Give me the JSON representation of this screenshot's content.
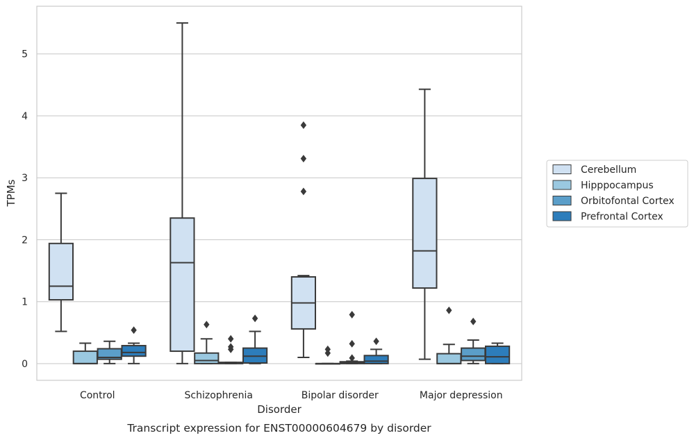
{
  "chart_data": {
    "type": "box",
    "caption": "Transcript expression for ENST00000604679 by disorder",
    "xlabel": "Disorder",
    "ylabel": "TPMs",
    "ylim": [
      -0.27,
      5.77
    ],
    "yticks": [
      0,
      1,
      2,
      3,
      4,
      5
    ],
    "grid": "horizontal",
    "legend_position": "right",
    "categories": [
      "Control",
      "Schizophrenia",
      "Bipolar disorder",
      "Major depression"
    ],
    "series": [
      {
        "name": "Cerebellum",
        "color": "#d0e1f2",
        "boxes": [
          {
            "whislo": 0.52,
            "q1": 1.03,
            "med": 1.25,
            "q3": 1.94,
            "whishi": 2.75,
            "fliers": []
          },
          {
            "whislo": 0.0,
            "q1": 0.2,
            "med": 1.63,
            "q3": 2.35,
            "whishi": 5.5,
            "fliers": []
          },
          {
            "whislo": 0.1,
            "q1": 0.56,
            "med": 0.98,
            "q3": 1.4,
            "whishi": 1.42,
            "fliers": [
              2.78,
              3.31,
              3.85
            ]
          },
          {
            "whislo": 0.07,
            "q1": 1.22,
            "med": 1.82,
            "q3": 2.99,
            "whishi": 4.43,
            "fliers": []
          }
        ]
      },
      {
        "name": "Hipppocampus",
        "color": "#9ac8e0",
        "boxes": [
          {
            "whislo": 0.0,
            "q1": 0.0,
            "med": 0.0,
            "q3": 0.2,
            "whishi": 0.33,
            "fliers": []
          },
          {
            "whislo": 0.0,
            "q1": 0.0,
            "med": 0.05,
            "q3": 0.17,
            "whishi": 0.4,
            "fliers": [
              0.63
            ]
          },
          {
            "whislo": 0.0,
            "q1": 0.0,
            "med": 0.0,
            "q3": 0.0,
            "whishi": 0.0,
            "fliers": [
              0.17,
              0.23
            ]
          },
          {
            "whislo": 0.0,
            "q1": 0.0,
            "med": 0.0,
            "q3": 0.16,
            "whishi": 0.31,
            "fliers": [
              0.86
            ]
          }
        ]
      },
      {
        "name": "Orbitofontal Cortex",
        "color": "#5b9ec9",
        "boxes": [
          {
            "whislo": 0.0,
            "q1": 0.07,
            "med": 0.1,
            "q3": 0.24,
            "whishi": 0.36,
            "fliers": []
          },
          {
            "whislo": 0.0,
            "q1": 0.0,
            "med": 0.01,
            "q3": 0.02,
            "whishi": 0.02,
            "fliers": [
              0.23,
              0.27,
              0.4
            ]
          },
          {
            "whislo": 0.0,
            "q1": 0.0,
            "med": 0.01,
            "q3": 0.03,
            "whishi": 0.04,
            "fliers": [
              0.09,
              0.32,
              0.79
            ]
          },
          {
            "whislo": 0.0,
            "q1": 0.05,
            "med": 0.12,
            "q3": 0.25,
            "whishi": 0.38,
            "fliers": [
              0.68
            ]
          }
        ]
      },
      {
        "name": "Prefrontal Cortex",
        "color": "#2d7dbb",
        "boxes": [
          {
            "whislo": 0.0,
            "q1": 0.12,
            "med": 0.18,
            "q3": 0.29,
            "whishi": 0.33,
            "fliers": [
              0.54
            ]
          },
          {
            "whislo": 0.0,
            "q1": 0.01,
            "med": 0.12,
            "q3": 0.25,
            "whishi": 0.52,
            "fliers": [
              0.73
            ]
          },
          {
            "whislo": 0.0,
            "q1": 0.0,
            "med": 0.04,
            "q3": 0.13,
            "whishi": 0.23,
            "fliers": [
              0.36
            ]
          },
          {
            "whislo": 0.0,
            "q1": 0.0,
            "med": 0.11,
            "q3": 0.28,
            "whishi": 0.33,
            "fliers": []
          }
        ]
      }
    ]
  }
}
